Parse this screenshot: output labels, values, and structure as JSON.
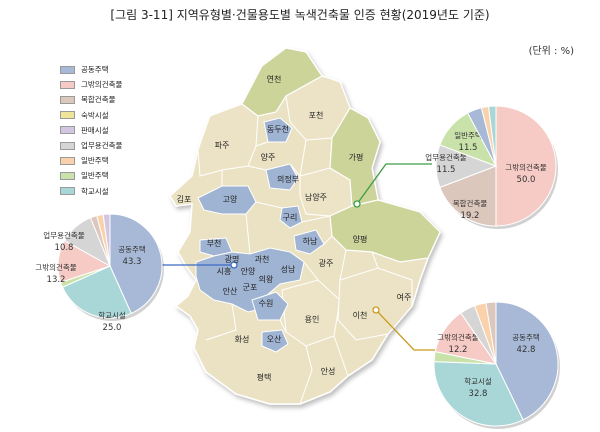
{
  "title": "[그림 3-11] 지역유형별·건물용도별 녹색건축물 인증 현황(2019년도 기준)",
  "unit": "(단위 : %)",
  "colors": {
    "residential": "#9fb3d2",
    "agricultural": "#ccd49a",
    "urban_gray": "#b9c5d8",
    "other": "#ebe2c4"
  },
  "legend": [
    {
      "label": "공동주택",
      "color": "#a7b9d6"
    },
    {
      "label": "그밖의건축물",
      "color": "#f6cbc5"
    },
    {
      "label": "복합건축물",
      "color": "#dcc7bd"
    },
    {
      "label": "숙박시설",
      "color": "#efe49a"
    },
    {
      "label": "판매시설",
      "color": "#d3c6e2"
    },
    {
      "label": "업무용건축물",
      "color": "#d5d5d5"
    },
    {
      "label": "일반주택",
      "color": "#f9d2ac"
    },
    {
      "label": "일반주택",
      "color": "#c9e2a9"
    },
    {
      "label": "학교시설",
      "color": "#a9d7d7"
    }
  ],
  "regions": [
    {
      "name": "연천",
      "type": "agricultural"
    },
    {
      "name": "포천",
      "type": "other"
    },
    {
      "name": "동두천",
      "type": "residential"
    },
    {
      "name": "파주",
      "type": "other"
    },
    {
      "name": "양주",
      "type": "other"
    },
    {
      "name": "가평",
      "type": "agricultural"
    },
    {
      "name": "의정부",
      "type": "residential"
    },
    {
      "name": "김포",
      "type": "other"
    },
    {
      "name": "고양",
      "type": "residential"
    },
    {
      "name": "남양주",
      "type": "other"
    },
    {
      "name": "구리",
      "type": "residential"
    },
    {
      "name": "양평",
      "type": "agricultural"
    },
    {
      "name": "하남",
      "type": "residential"
    },
    {
      "name": "부천",
      "type": "residential"
    },
    {
      "name": "광명",
      "type": "residential"
    },
    {
      "name": "과천",
      "type": "residential"
    },
    {
      "name": "시흥",
      "type": "other"
    },
    {
      "name": "안양",
      "type": "residential"
    },
    {
      "name": "성남",
      "type": "residential"
    },
    {
      "name": "광주",
      "type": "other"
    },
    {
      "name": "의왕",
      "type": "residential"
    },
    {
      "name": "군포",
      "type": "residential"
    },
    {
      "name": "안산",
      "type": "residential"
    },
    {
      "name": "수원",
      "type": "residential"
    },
    {
      "name": "여주",
      "type": "other"
    },
    {
      "name": "용인",
      "type": "other"
    },
    {
      "name": "이천",
      "type": "other"
    },
    {
      "name": "화성",
      "type": "other"
    },
    {
      "name": "오산",
      "type": "residential"
    },
    {
      "name": "평택",
      "type": "other"
    },
    {
      "name": "안성",
      "type": "other"
    }
  ],
  "pies": [
    {
      "id": "left",
      "slices": [
        {
          "label": "공동주택",
          "value": 43.3,
          "color": "#a7b9d6"
        },
        {
          "label": "학교시설",
          "value": 25.0,
          "color": "#a9d7d7"
        },
        {
          "label": "",
          "value": 1.6,
          "color": "#c9e2a9"
        },
        {
          "label": "그밖의건축물",
          "value": 13.2,
          "color": "#f6cbc5"
        },
        {
          "label": "업무용건축물",
          "value": 10.8,
          "color": "#d5d5d5"
        },
        {
          "label": "",
          "value": 2.0,
          "color": "#dcc7bd"
        },
        {
          "label": "",
          "value": 2.0,
          "color": "#f9d2ac"
        },
        {
          "label": "",
          "value": 2.1,
          "color": "#d3c6e2"
        }
      ]
    },
    {
      "id": "top-right",
      "slices": [
        {
          "label": "그밖의건축물",
          "value": 50.0,
          "color": "#f6cbc5"
        },
        {
          "label": "복합건축물",
          "value": 19.2,
          "color": "#dcc7bd"
        },
        {
          "label": "업무용건축물",
          "value": 11.5,
          "color": "#d5d5d5"
        },
        {
          "label": "일반주택",
          "value": 11.5,
          "color": "#c9e2a9"
        },
        {
          "label": "",
          "value": 3.9,
          "color": "#a7b9d6"
        },
        {
          "label": "",
          "value": 1.9,
          "color": "#f9d2ac"
        },
        {
          "label": "",
          "value": 2.0,
          "color": "#a9d7d7"
        }
      ]
    },
    {
      "id": "bottom-right",
      "slices": [
        {
          "label": "공동주택",
          "value": 42.8,
          "color": "#a7b9d6"
        },
        {
          "label": "학교시설",
          "value": 32.8,
          "color": "#a9d7d7"
        },
        {
          "label": "",
          "value": 2.6,
          "color": "#c9e2a9"
        },
        {
          "label": "그밖의건축물",
          "value": 12.2,
          "color": "#f6cbc5"
        },
        {
          "label": "",
          "value": 4.0,
          "color": "#d5d5d5"
        },
        {
          "label": "",
          "value": 3.0,
          "color": "#f9d2ac"
        },
        {
          "label": "",
          "value": 2.6,
          "color": "#dcc7bd"
        }
      ]
    }
  ]
}
